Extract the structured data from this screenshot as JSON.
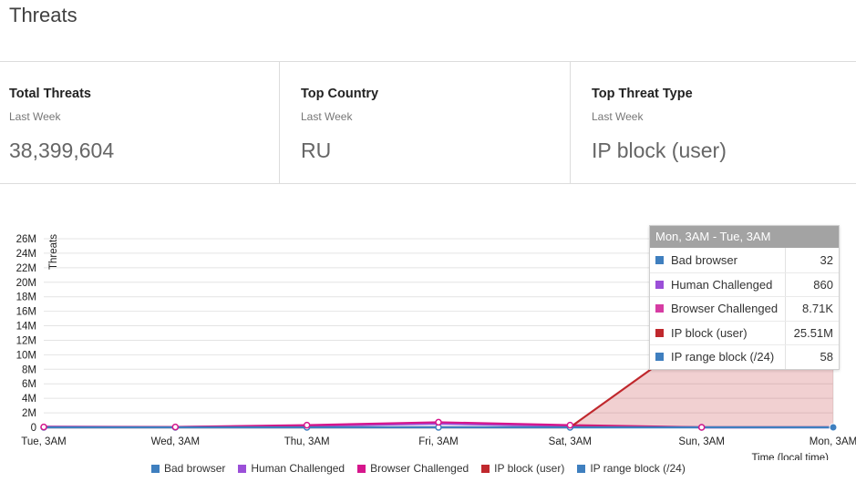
{
  "header": {
    "title": "Threats"
  },
  "stats": [
    {
      "label": "Total Threats",
      "period": "Last Week",
      "value": "38,399,604"
    },
    {
      "label": "Top Country",
      "period": "Last Week",
      "value": "RU"
    },
    {
      "label": "Top Threat Type",
      "period": "Last Week",
      "value": "IP block (user)"
    }
  ],
  "tooltip": {
    "title": "Mon, 3AM - Tue, 3AM",
    "rows": [
      {
        "name": "Bad browser",
        "value": "32",
        "color": "#3f7fbf"
      },
      {
        "name": "Human Challenged",
        "value": "860",
        "color": "#9b4fd8"
      },
      {
        "name": "Browser Challenged",
        "value": "8.71K",
        "color": "#d63ca3"
      },
      {
        "name": "IP block (user)",
        "value": "25.51M",
        "color": "#c0282d"
      },
      {
        "name": "IP range block (/24)",
        "value": "58",
        "color": "#3f7fbf"
      }
    ]
  },
  "legend": [
    {
      "name": "Bad browser",
      "color": "#3f7fbf"
    },
    {
      "name": "Human Challenged",
      "color": "#9b4fd8"
    },
    {
      "name": "Browser Challenged",
      "color": "#d6168c"
    },
    {
      "name": "IP block (user)",
      "color": "#c0282d"
    },
    {
      "name": "IP range block (/24)",
      "color": "#3f7fbf"
    }
  ],
  "chart_data": {
    "type": "area",
    "ylabel": "Threats",
    "xlabel": "Time (local time)",
    "categories": [
      "Tue, 3AM",
      "Wed, 3AM",
      "Thu, 3AM",
      "Fri, 3AM",
      "Sat, 3AM",
      "Sun, 3AM",
      "Mon, 3AM"
    ],
    "yticks": [
      "0",
      "2M",
      "4M",
      "6M",
      "8M",
      "10M",
      "12M",
      "14M",
      "16M",
      "18M",
      "20M",
      "22M",
      "24M",
      "26M"
    ],
    "ylim": [
      0,
      26000000
    ],
    "grid": true,
    "legend_position": "bottom",
    "series": [
      {
        "name": "Bad browser",
        "color": "#3f7fbf",
        "values": [
          0,
          0,
          0,
          0,
          0,
          0,
          32
        ]
      },
      {
        "name": "Human Challenged",
        "color": "#9b4fd8",
        "values": [
          100000,
          50000,
          200000,
          500000,
          200000,
          0,
          860
        ]
      },
      {
        "name": "Browser Challenged",
        "color": "#d6168c",
        "values": [
          50000,
          50000,
          300000,
          700000,
          300000,
          0,
          8710
        ]
      },
      {
        "name": "IP block (user)",
        "color": "#c0282d",
        "values": [
          0,
          0,
          0,
          0,
          0,
          13000000,
          25510000
        ]
      },
      {
        "name": "IP range block (/24)",
        "color": "#3f7fbf",
        "values": [
          0,
          0,
          0,
          0,
          0,
          0,
          58
        ]
      }
    ]
  }
}
